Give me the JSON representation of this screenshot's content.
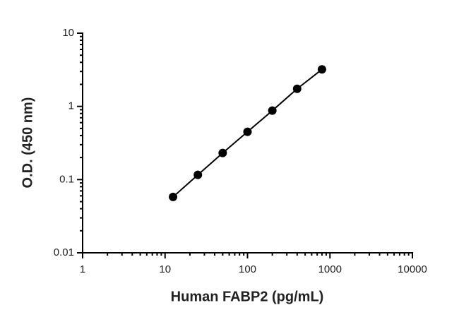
{
  "chart_data": {
    "type": "scatter",
    "line": true,
    "color": "#000000",
    "x_label": "Human FABP2 (pg/mL)",
    "y_label": "O.D. (450 nm)",
    "x": [
      12.5,
      25,
      50,
      100,
      200,
      400,
      800
    ],
    "values": [
      0.058,
      0.116,
      0.231,
      0.45,
      0.875,
      1.74,
      3.2
    ],
    "xlog": true,
    "ylog": true,
    "xlim": [
      1,
      10000
    ],
    "ylim": [
      0.01,
      10
    ],
    "xticks": [
      1,
      10,
      100,
      1000,
      10000
    ],
    "yticks": [
      0.01,
      0.1,
      1,
      10
    ]
  }
}
